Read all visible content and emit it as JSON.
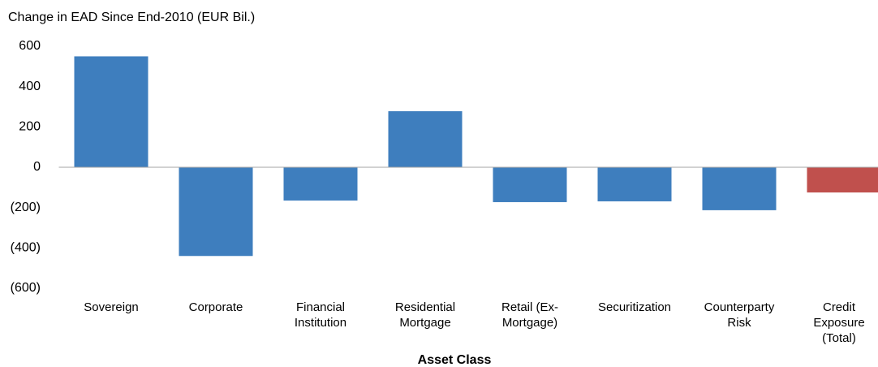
{
  "chart_data": {
    "type": "bar",
    "title": "Change in EAD Since End-2010 (EUR Bil.)",
    "x_label": "Asset Class",
    "categories": [
      "Sovereign",
      "Corporate",
      "Financial Institution",
      "Residential Mortgage",
      "Retail (Ex-Mortgage)",
      "Securitization",
      "Counterparty Risk",
      "Credit Exposure (Total)"
    ],
    "values": [
      550,
      -440,
      -165,
      278,
      -173,
      -169,
      -213,
      -125
    ],
    "colors": [
      "#3e7ebe",
      "#3e7ebe",
      "#3e7ebe",
      "#3e7ebe",
      "#3e7ebe",
      "#3e7ebe",
      "#3e7ebe",
      "#c0504d"
    ],
    "ylim": [
      -600,
      600
    ],
    "yticks": [
      {
        "value": -600,
        "label": "(600)"
      },
      {
        "value": -400,
        "label": "(400)"
      },
      {
        "value": -200,
        "label": "(200)"
      },
      0,
      200,
      400,
      600
    ]
  }
}
